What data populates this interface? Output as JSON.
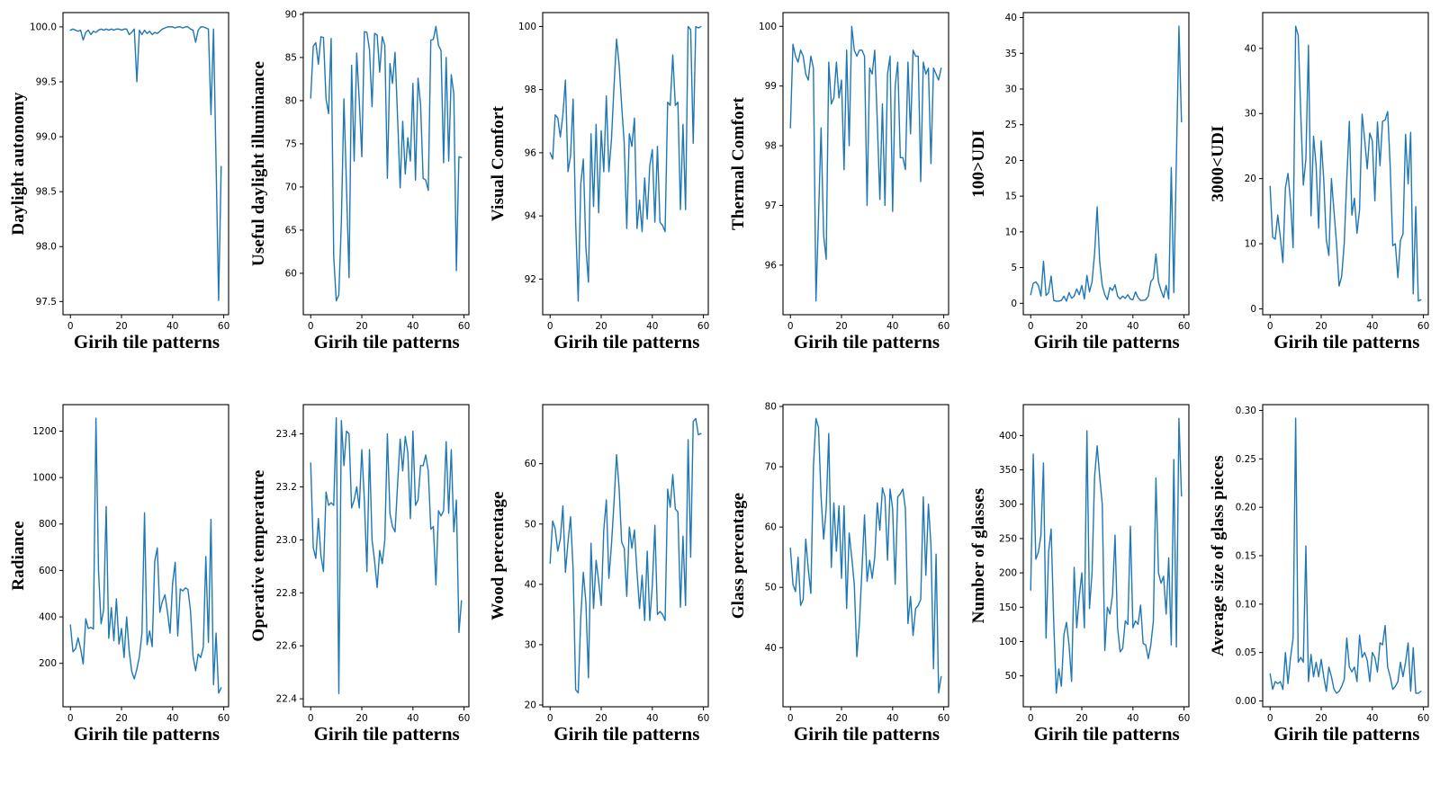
{
  "figure": {
    "background": "#ffffff",
    "axis_color": "#000000",
    "line_color": "#1f77b4",
    "xlim": [
      -2.9,
      61.9
    ],
    "x_tick_values": [
      0,
      20,
      40,
      60
    ],
    "x_tick_labels": [
      "0",
      "20",
      "40",
      "60"
    ]
  },
  "chart_data": [
    {
      "name": "daylight-autonomy",
      "type": "line",
      "xlabel": "Girih tile patterns",
      "ylabel": "Daylight autonomy",
      "x_start": 0,
      "x_step": 1,
      "ylim": [
        97.38,
        100.13
      ],
      "y_tick_values": [
        97.5,
        98.0,
        98.5,
        99.0,
        99.5,
        100.0
      ],
      "y_tick_labels": [
        "97.5",
        "98.0",
        "98.5",
        "99.0",
        "99.5",
        "100.0"
      ],
      "values": [
        99.97,
        99.98,
        99.97,
        99.96,
        99.97,
        99.88,
        99.95,
        99.97,
        99.93,
        99.96,
        99.95,
        99.97,
        99.98,
        99.97,
        99.98,
        99.97,
        99.98,
        99.97,
        99.98,
        99.98,
        99.97,
        99.98,
        99.98,
        99.93,
        99.95,
        99.98,
        99.5,
        99.97,
        99.93,
        99.97,
        99.94,
        99.96,
        99.93,
        99.95,
        99.94,
        99.96,
        99.98,
        99.99,
        100.0,
        100.0,
        100.0,
        99.99,
        100.0,
        100.0,
        99.99,
        100.0,
        100.0,
        99.98,
        99.97,
        99.86,
        99.97,
        100.0,
        100.0,
        99.99,
        99.98,
        99.2,
        99.98,
        98.75,
        97.51,
        98.73
      ]
    },
    {
      "name": "useful-daylight-illuminance",
      "type": "line",
      "xlabel": "Girih tile patterns",
      "ylabel": "Useful daylight illuminance",
      "x_start": 0,
      "x_step": 1,
      "ylim": [
        55.2,
        90.2
      ],
      "y_tick_values": [
        60,
        65,
        70,
        75,
        80,
        85,
        90
      ],
      "y_tick_labels": [
        "60",
        "65",
        "70",
        "75",
        "80",
        "85",
        "90"
      ],
      "values": [
        80.3,
        86.3,
        86.7,
        84.2,
        87.4,
        87.3,
        80.2,
        78.5,
        87.2,
        62.0,
        56.8,
        57.5,
        66.0,
        80.2,
        70.0,
        59.5,
        84.1,
        73.0,
        85.5,
        80.0,
        73.5,
        88.0,
        87.9,
        85.9,
        79.3,
        87.8,
        87.6,
        83.3,
        87.4,
        86.4,
        71.0,
        84.3,
        82.0,
        85.6,
        78.0,
        69.9,
        77.6,
        71.5,
        75.7,
        73.0,
        82.0,
        70.8,
        82.6,
        79.5,
        71.0,
        70.8,
        69.6,
        87.0,
        87.1,
        88.6,
        86.4,
        85.8,
        72.8,
        85.0,
        73.0,
        83.0,
        80.8,
        60.3,
        73.5,
        73.4
      ]
    },
    {
      "name": "visual-comfort",
      "type": "line",
      "xlabel": "Girih tile patterns",
      "ylabel": "Visual Comfort",
      "x_start": 0,
      "x_step": 1,
      "ylim": [
        90.87,
        100.44
      ],
      "y_tick_values": [
        92,
        94,
        96,
        98,
        100
      ],
      "y_tick_labels": [
        "92",
        "94",
        "96",
        "98",
        "100"
      ],
      "values": [
        96.0,
        95.8,
        97.2,
        97.1,
        96.5,
        97.2,
        98.3,
        95.4,
        95.9,
        97.7,
        93.8,
        91.3,
        95.0,
        95.8,
        93.0,
        91.9,
        96.6,
        94.3,
        96.9,
        94.1,
        96.7,
        95.4,
        97.8,
        95.4,
        96.4,
        98.1,
        99.6,
        98.8,
        97.5,
        96.3,
        93.6,
        96.6,
        96.2,
        97.1,
        93.6,
        94.5,
        93.5,
        95.2,
        93.9,
        95.6,
        96.1,
        93.8,
        96.2,
        93.8,
        93.7,
        93.5,
        97.6,
        97.5,
        99.1,
        97.5,
        97.6,
        94.2,
        96.9,
        94.2,
        100.0,
        99.9,
        96.3,
        100.0,
        99.95,
        100.0
      ]
    },
    {
      "name": "thermal-comfort",
      "type": "line",
      "xlabel": "Girih tile patterns",
      "ylabel": "Thermal Comfort",
      "x_start": 0,
      "x_step": 1,
      "ylim": [
        95.17,
        100.23
      ],
      "y_tick_values": [
        96,
        97,
        98,
        99,
        100
      ],
      "y_tick_labels": [
        "96",
        "97",
        "98",
        "99",
        "100"
      ],
      "values": [
        98.3,
        99.7,
        99.5,
        99.4,
        99.6,
        99.5,
        99.2,
        99.1,
        99.5,
        99.3,
        95.4,
        96.8,
        98.3,
        96.5,
        96.1,
        99.4,
        98.7,
        98.8,
        99.4,
        98.8,
        99.1,
        97.6,
        99.6,
        98.0,
        100.0,
        99.6,
        99.5,
        99.6,
        99.6,
        99.5,
        97.0,
        99.3,
        99.2,
        99.6,
        98.4,
        97.1,
        98.7,
        97.0,
        99.2,
        99.5,
        96.9,
        99.0,
        99.4,
        97.8,
        97.8,
        97.6,
        99.4,
        98.2,
        99.6,
        99.5,
        99.5,
        97.4,
        99.4,
        99.2,
        99.3,
        97.7,
        99.3,
        99.2,
        99.1,
        99.3
      ]
    },
    {
      "name": "udi-below-100",
      "type": "line",
      "xlabel": "Girih tile patterns",
      "ylabel": "100>UDI",
      "x_start": 0,
      "x_step": 1,
      "ylim": [
        -1.6,
        40.7
      ],
      "y_tick_values": [
        0,
        5,
        10,
        15,
        20,
        25,
        30,
        35,
        40
      ],
      "y_tick_labels": [
        "0",
        "5",
        "10",
        "15",
        "20",
        "25",
        "30",
        "35",
        "40"
      ],
      "values": [
        1.2,
        2.8,
        3.0,
        2.5,
        1.0,
        5.9,
        1.1,
        1.5,
        3.8,
        0.4,
        0.3,
        0.3,
        0.4,
        1.0,
        0.3,
        1.5,
        0.7,
        1.0,
        2.0,
        1.2,
        2.5,
        0.6,
        3.9,
        1.6,
        3.0,
        7.0,
        13.5,
        5.8,
        2.5,
        1.2,
        0.5,
        2.2,
        1.8,
        2.6,
        1.0,
        0.6,
        1.0,
        0.7,
        1.2,
        0.6,
        0.5,
        1.6,
        0.8,
        0.4,
        0.4,
        0.5,
        1.0,
        3.0,
        3.5,
        6.9,
        3.0,
        1.8,
        0.8,
        2.5,
        0.6,
        19.0,
        1.5,
        20.0,
        38.8,
        25.4
      ]
    },
    {
      "name": "udi-above-3000",
      "type": "line",
      "xlabel": "Girih tile patterns",
      "ylabel": "3000<UDI",
      "x_start": 0,
      "x_step": 1,
      "ylim": [
        -0.9,
        45.5
      ],
      "y_tick_values": [
        0,
        10,
        20,
        30,
        40
      ],
      "y_tick_labels": [
        "0",
        "10",
        "20",
        "30",
        "40"
      ],
      "values": [
        18.8,
        11.0,
        10.7,
        14.4,
        11.0,
        7.1,
        18.6,
        20.8,
        16.4,
        9.4,
        43.4,
        42.0,
        30.0,
        19.0,
        23.0,
        40.5,
        14.3,
        26.5,
        22.0,
        12.4,
        25.8,
        19.8,
        10.6,
        8.2,
        20.0,
        15.0,
        10.0,
        3.5,
        5.0,
        10.0,
        19.9,
        28.8,
        14.4,
        17.0,
        11.6,
        15.2,
        29.9,
        26.0,
        21.5,
        27.0,
        25.8,
        16.6,
        28.7,
        22.0,
        28.8,
        29.0,
        30.3,
        21.8,
        9.7,
        10.0,
        4.8,
        10.5,
        11.5,
        26.8,
        19.2,
        27.1,
        2.3,
        15.7,
        1.2,
        1.4
      ]
    },
    {
      "name": "radiance",
      "type": "line",
      "xlabel": "Girih tile patterns",
      "ylabel": "Radiance",
      "x_start": 0,
      "x_step": 1,
      "ylim": [
        13,
        1314
      ],
      "y_tick_values": [
        200,
        400,
        600,
        800,
        1000,
        1200
      ],
      "y_tick_labels": [
        "200",
        "400",
        "600",
        "800",
        "1000",
        "1200"
      ],
      "values": [
        365,
        250,
        262,
        310,
        262,
        197,
        392,
        350,
        355,
        348,
        1255,
        600,
        370,
        430,
        875,
        308,
        440,
        298,
        478,
        283,
        350,
        225,
        400,
        253,
        165,
        133,
        175,
        230,
        330,
        848,
        280,
        340,
        272,
        640,
        697,
        420,
        468,
        495,
        420,
        330,
        545,
        635,
        318,
        520,
        512,
        525,
        518,
        425,
        230,
        168,
        240,
        225,
        270,
        660,
        290,
        820,
        108,
        330,
        72,
        95
      ]
    },
    {
      "name": "operative-temperature",
      "type": "line",
      "xlabel": "Girih tile patterns",
      "ylabel": "Operative temperature",
      "x_start": 0,
      "x_step": 1,
      "ylim": [
        22.37,
        23.51
      ],
      "y_tick_values": [
        22.4,
        22.6,
        22.8,
        23.0,
        23.2,
        23.4
      ],
      "y_tick_labels": [
        "22.4",
        "22.6",
        "22.8",
        "23.0",
        "23.2",
        "23.4"
      ],
      "values": [
        23.29,
        22.97,
        22.93,
        23.08,
        22.94,
        22.88,
        23.18,
        23.13,
        23.14,
        23.13,
        23.46,
        22.42,
        23.45,
        23.28,
        23.41,
        23.4,
        23.12,
        23.15,
        23.2,
        23.12,
        23.34,
        23.15,
        22.88,
        23.34,
        23.0,
        22.92,
        22.82,
        22.96,
        22.91,
        23.0,
        23.4,
        23.1,
        23.05,
        23.03,
        23.21,
        23.38,
        23.26,
        23.39,
        23.33,
        23.08,
        23.41,
        23.13,
        23.15,
        23.28,
        23.28,
        23.32,
        23.26,
        23.04,
        23.05,
        22.83,
        23.11,
        23.09,
        23.11,
        23.37,
        23.1,
        23.34,
        23.03,
        23.15,
        22.65,
        22.77
      ]
    },
    {
      "name": "wood-percentage",
      "type": "line",
      "xlabel": "Girih tile patterns",
      "ylabel": "Wood percentage",
      "x_start": 0,
      "x_step": 1,
      "ylim": [
        19.7,
        69.8
      ],
      "y_tick_values": [
        20,
        30,
        40,
        50,
        60
      ],
      "y_tick_labels": [
        "20",
        "30",
        "40",
        "50",
        "60"
      ],
      "values": [
        43.5,
        50.5,
        49.2,
        45.5,
        47.5,
        53.0,
        42.0,
        47.0,
        51.2,
        42.5,
        22.5,
        22.0,
        34.5,
        42.0,
        37.0,
        24.5,
        46.8,
        36.0,
        44.0,
        40.5,
        36.5,
        49.0,
        54.0,
        41.0,
        46.5,
        53.5,
        61.5,
        56.0,
        47.0,
        46.0,
        38.0,
        49.5,
        46.0,
        49.0,
        42.0,
        36.0,
        41.5,
        34.0,
        45.5,
        34.0,
        39.8,
        49.8,
        35.0,
        35.5,
        35.0,
        34.0,
        55.8,
        52.8,
        58.2,
        52.5,
        52.0,
        36.2,
        48.0,
        36.5,
        64.0,
        44.5,
        67.0,
        67.5,
        64.8,
        65.0
      ]
    },
    {
      "name": "glass-percentage",
      "type": "line",
      "xlabel": "Girih tile patterns",
      "ylabel": "Glass percentage",
      "x_start": 0,
      "x_step": 1,
      "ylim": [
        30.2,
        80.3
      ],
      "y_tick_values": [
        40,
        50,
        60,
        70,
        80
      ],
      "y_tick_labels": [
        "40",
        "50",
        "60",
        "70",
        "80"
      ],
      "values": [
        56.5,
        50.5,
        49.3,
        55.0,
        47.0,
        48.0,
        58.0,
        53.0,
        49.0,
        70.0,
        78.0,
        76.5,
        65.0,
        58.0,
        63.0,
        75.5,
        53.3,
        64.0,
        56.0,
        63.5,
        51.5,
        63.5,
        46.5,
        59.0,
        55.0,
        50.5,
        38.5,
        44.0,
        53.0,
        62.0,
        51.0,
        54.5,
        51.5,
        55.0,
        64.0,
        59.5,
        66.5,
        65.0,
        54.5,
        66.3,
        63.0,
        50.5,
        65.0,
        65.5,
        66.3,
        63.0,
        44.0,
        48.5,
        42.0,
        46.5,
        47.0,
        48.0,
        65.0,
        52.0,
        63.8,
        57.0,
        36.5,
        55.5,
        32.5,
        35.2
      ]
    },
    {
      "name": "number-of-glasses",
      "type": "line",
      "xlabel": "Girih tile patterns",
      "ylabel": "Number of glasses",
      "x_start": 0,
      "x_step": 1,
      "ylim": [
        5,
        445
      ],
      "y_tick_values": [
        50,
        100,
        150,
        200,
        250,
        300,
        350,
        400
      ],
      "y_tick_labels": [
        "50",
        "100",
        "150",
        "200",
        "250",
        "300",
        "350",
        "400"
      ],
      "values": [
        175,
        373,
        220,
        230,
        255,
        360,
        105,
        230,
        264,
        130,
        25,
        60,
        35,
        110,
        128,
        95,
        42,
        208,
        120,
        165,
        200,
        120,
        407,
        148,
        200,
        340,
        385,
        340,
        300,
        87,
        150,
        140,
        168,
        255,
        120,
        85,
        90,
        130,
        125,
        268,
        120,
        130,
        125,
        153,
        97,
        95,
        75,
        95,
        130,
        338,
        200,
        185,
        195,
        140,
        222,
        95,
        365,
        92,
        425,
        312
      ]
    },
    {
      "name": "average-size-of-glass-pieces",
      "type": "line",
      "xlabel": "Girih tile patterns",
      "ylabel": "Average size of glass pieces",
      "x_start": 0,
      "x_step": 1,
      "ylim": [
        -0.006,
        0.306
      ],
      "y_tick_values": [
        0.0,
        0.05,
        0.1,
        0.15,
        0.2,
        0.25,
        0.3
      ],
      "y_tick_labels": [
        "0.00",
        "0.05",
        "0.10",
        "0.15",
        "0.20",
        "0.25",
        "0.30"
      ],
      "values": [
        0.028,
        0.012,
        0.02,
        0.018,
        0.02,
        0.012,
        0.05,
        0.018,
        0.045,
        0.065,
        0.292,
        0.04,
        0.045,
        0.04,
        0.16,
        0.02,
        0.048,
        0.025,
        0.04,
        0.025,
        0.043,
        0.025,
        0.01,
        0.035,
        0.025,
        0.012,
        0.008,
        0.01,
        0.015,
        0.022,
        0.065,
        0.035,
        0.03,
        0.035,
        0.02,
        0.068,
        0.045,
        0.05,
        0.042,
        0.02,
        0.05,
        0.045,
        0.03,
        0.06,
        0.058,
        0.078,
        0.035,
        0.025,
        0.012,
        0.015,
        0.02,
        0.04,
        0.025,
        0.04,
        0.06,
        0.01,
        0.055,
        0.008,
        0.008,
        0.01
      ]
    }
  ]
}
